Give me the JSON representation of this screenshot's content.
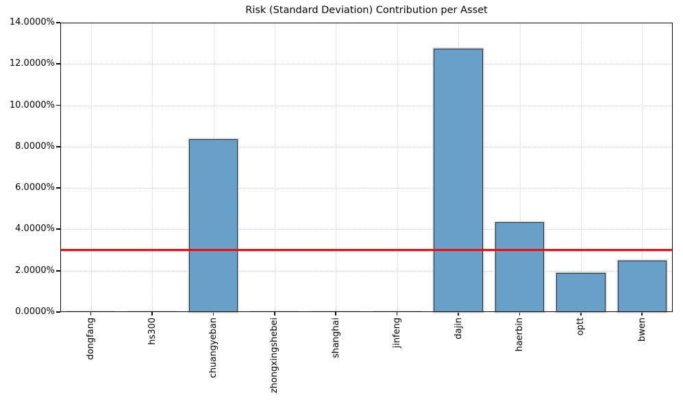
{
  "chart_data": {
    "type": "bar",
    "title": "Risk (Standard Deviation) Contribution per Asset",
    "categories": [
      "dongfang",
      "hs300",
      "chuangyeban",
      "zhongxingshebei",
      "shanghai",
      "jinfeng",
      "dajin",
      "haerbin",
      "optt",
      "bwen"
    ],
    "values": [
      0.0,
      0.0,
      8.35,
      0.0,
      0.0,
      0.0,
      12.75,
      4.35,
      1.9,
      2.5
    ],
    "unit": "%",
    "xlabel": "",
    "ylabel": "",
    "ylim": [
      0,
      14
    ],
    "y_ticks": [
      0,
      2,
      4,
      6,
      8,
      10,
      12,
      14
    ],
    "y_tick_labels": [
      "0.0000%",
      "2.0000%",
      "4.0000%",
      "6.0000%",
      "8.0000%",
      "10.0000%",
      "12.0000%",
      "14.0000%"
    ],
    "threshold_line": {
      "value": 3.0,
      "color": "#ff0000"
    },
    "grid": true,
    "legend": false,
    "bar_color": "#69a0c8",
    "bar_edge_color": "#212b36",
    "near_zero_bar_color": "#d8d8d8",
    "background_color": "#ffffff"
  }
}
